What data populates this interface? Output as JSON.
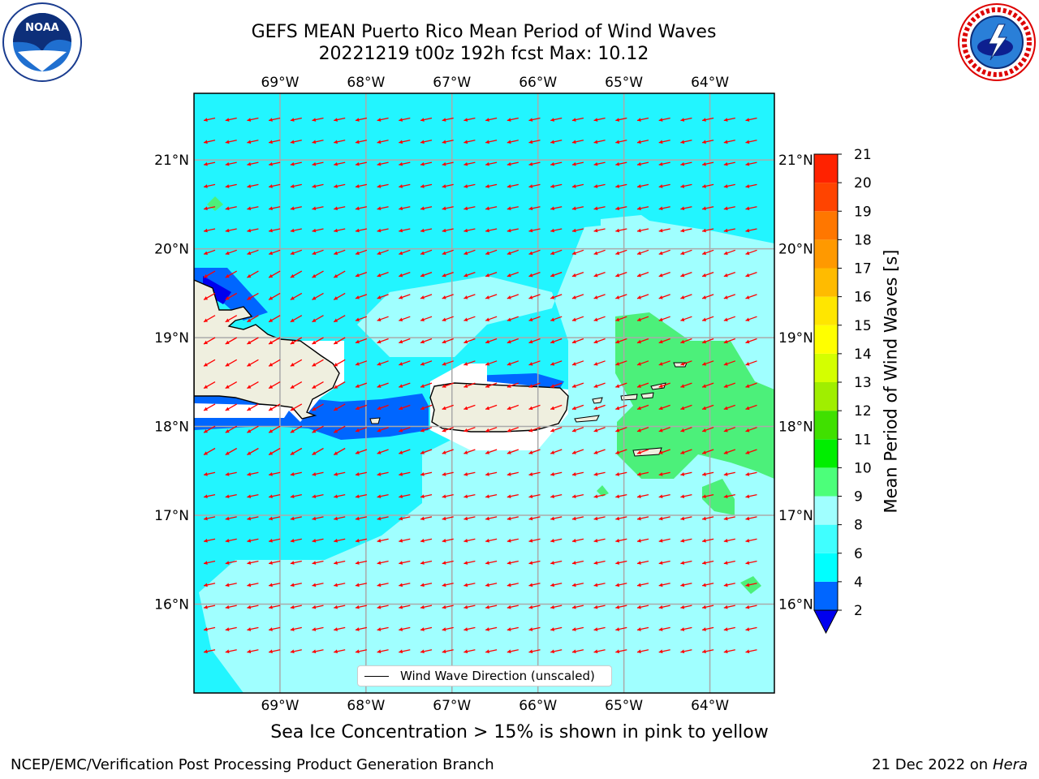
{
  "title": {
    "line1": "GEFS MEAN Puerto Rico Mean Period of Wind Waves",
    "line2": "20221219 t00z 192h fcst   Max: 10.12"
  },
  "logos": {
    "left": "noaa-logo",
    "right": "national-weather-service-logo"
  },
  "map": {
    "lon_ticks": [
      "69°W",
      "68°W",
      "67°W",
      "66°W",
      "65°W",
      "64°W"
    ],
    "lat_ticks": [
      "21°N",
      "20°N",
      "19°N",
      "18°N",
      "17°N",
      "16°N"
    ],
    "extent": {
      "lon": [
        -70.0,
        -63.25
      ],
      "lat": [
        15.0,
        21.75
      ]
    },
    "arrow_color": "#ff0000",
    "land_color": "#efefdf",
    "grid": true
  },
  "colorbar": {
    "label": "Mean Period of Wind Waves [s]",
    "tick_labels": [
      "2",
      "4",
      "6",
      "8",
      "9",
      "10",
      "11",
      "12",
      "13",
      "14",
      "15",
      "16",
      "17",
      "18",
      "19",
      "20",
      "21"
    ],
    "colors": [
      "#0066ff",
      "#00ffff",
      "#40ffff",
      "#a0ffff",
      "#4cff7a",
      "#00ee00",
      "#40e000",
      "#a0ee00",
      "#d4ff00",
      "#ffff00",
      "#ffe600",
      "#ffbb00",
      "#ff9900",
      "#ff7700",
      "#ff4400",
      "#ff2200",
      "#ff0000"
    ],
    "under_color": "#0000ee"
  },
  "legend": {
    "label": "Wind Wave Direction (unscaled)"
  },
  "caption": "Sea Ice Concentration > 15% is shown in pink to yellow",
  "footer": {
    "left": "NCEP/EMC/Verification Post Processing Product Generation Branch",
    "date": "21 Dec 2022 on",
    "machine": "Hera"
  }
}
